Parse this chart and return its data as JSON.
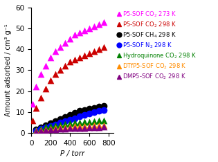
{
  "title": "",
  "xlabel": "P / torr",
  "ylabel": "Amount adsorbed / cm³ g⁻¹",
  "xlim": [
    0,
    850
  ],
  "ylim": [
    0,
    60
  ],
  "yticks": [
    0,
    10,
    20,
    30,
    40,
    50,
    60
  ],
  "xticks": [
    0,
    200,
    400,
    600,
    800
  ],
  "series": [
    {
      "label": "P5-SOF CO₂ 273 K",
      "color": "#ff00ff",
      "marker": "^",
      "x": [
        10,
        50,
        100,
        150,
        200,
        250,
        300,
        350,
        400,
        450,
        500,
        550,
        600,
        650,
        700,
        750
      ],
      "y": [
        14,
        22,
        28,
        32,
        36,
        39,
        41,
        43,
        45,
        47,
        48,
        49,
        50,
        51,
        52,
        53
      ]
    },
    {
      "label": "P5-SOF CO₂ 298 K",
      "color": "#cc0000",
      "marker": "^",
      "x": [
        10,
        50,
        100,
        150,
        200,
        250,
        300,
        350,
        400,
        450,
        500,
        550,
        600,
        650,
        700,
        750
      ],
      "y": [
        6,
        12,
        17,
        21,
        25,
        28,
        30,
        32,
        34,
        35,
        36,
        37,
        38,
        39,
        40,
        41
      ]
    },
    {
      "label": "P5-SOF CH₄ 298 K",
      "color": "#000000",
      "marker": "o",
      "x": [
        50,
        100,
        150,
        200,
        250,
        300,
        350,
        400,
        450,
        500,
        550,
        600,
        650,
        700,
        750
      ],
      "y": [
        1.5,
        2.5,
        3.5,
        4.5,
        5.5,
        6.5,
        7.5,
        8.5,
        9.5,
        10.5,
        11,
        11.5,
        12,
        12.5,
        13
      ]
    },
    {
      "label": "P5-SOF N₂ 298 K",
      "color": "#0000ff",
      "marker": "o",
      "x": [
        50,
        100,
        150,
        200,
        250,
        300,
        350,
        400,
        450,
        500,
        550,
        600,
        650,
        700,
        750
      ],
      "y": [
        1.0,
        1.8,
        2.5,
        3.2,
        4.0,
        4.8,
        5.5,
        6.2,
        7.0,
        7.8,
        8.5,
        9.2,
        10.0,
        10.5,
        11.0
      ]
    },
    {
      "label": "Hydroquinone CO₂ 298 K",
      "color": "#008000",
      "marker": "^",
      "x": [
        50,
        100,
        150,
        200,
        250,
        300,
        350,
        400,
        450,
        500,
        550,
        600,
        650,
        700,
        750
      ],
      "y": [
        1.2,
        2.0,
        2.8,
        3.2,
        3.6,
        3.9,
        4.2,
        4.5,
        4.8,
        5.0,
        5.2,
        5.4,
        5.6,
        5.8,
        6.0
      ]
    },
    {
      "label": "DTfP5-SOF CO₂ 298 K",
      "color": "#ff8c00",
      "marker": "^",
      "x": [
        50,
        100,
        150,
        200,
        250,
        300,
        350,
        400,
        450,
        500,
        550,
        600,
        650,
        700,
        750
      ],
      "y": [
        0.8,
        1.3,
        1.7,
        2.0,
        2.3,
        2.5,
        2.7,
        2.9,
        3.1,
        3.2,
        3.3,
        3.4,
        3.5,
        3.6,
        3.7
      ]
    },
    {
      "label": "DMP5-SOF CO₂ 298 K",
      "color": "#800080",
      "marker": "^",
      "x": [
        50,
        100,
        150,
        200,
        250,
        300,
        350,
        400,
        450,
        500,
        550,
        600,
        650,
        700,
        750
      ],
      "y": [
        0.5,
        0.9,
        1.2,
        1.5,
        1.7,
        1.9,
        2.0,
        2.1,
        2.2,
        2.3,
        2.4,
        2.5,
        2.6,
        2.7,
        2.8
      ]
    }
  ],
  "legend_labels": [
    {
      "text": "P5-SOF CO₂ 273 K",
      "color": "#ff00ff",
      "subscript": "2"
    },
    {
      "text": "P5-SOF CO₂ 298 K",
      "color": "#cc0000",
      "subscript": "2"
    },
    {
      "text": "P5-SOF CH₄ 298 K",
      "color": "#000000",
      "subscript": "4"
    },
    {
      "text": "P5-SOF N₂ 298 K",
      "color": "#0000ff",
      "subscript": "2"
    },
    {
      "text": "Hydroquinone CO₂ 298 K",
      "color": "#008000",
      "subscript": "2"
    },
    {
      "text": "DTfP5-SOF CO₂ 298 K",
      "color": "#ff8c00",
      "subscript": "2"
    },
    {
      "text": "DMP5-SOF CO₂ 298 K",
      "color": "#800080",
      "subscript": "2"
    }
  ],
  "bg_color": "#ffffff",
  "marker_size": 7,
  "font_size": 7.5
}
